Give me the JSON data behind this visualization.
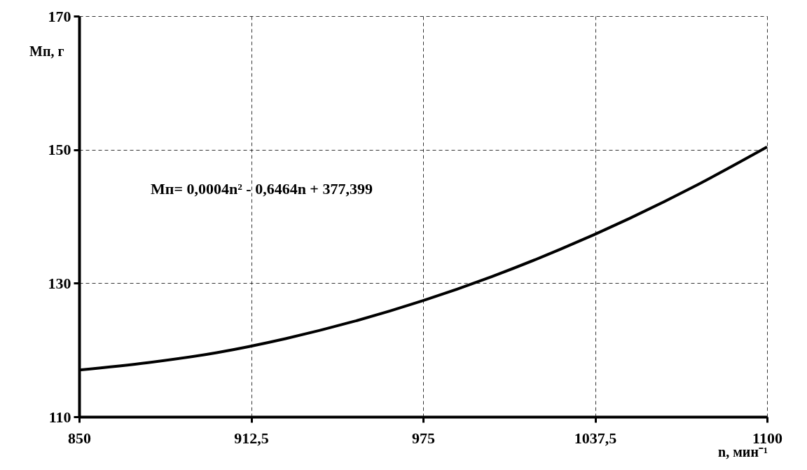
{
  "chart_data": {
    "type": "line",
    "xlabel": "n, мин⁻¹",
    "ylabel": "Мп, г",
    "annotations": [
      "Мп= 0,0004n² - 0,6464n + 377,399"
    ],
    "x": [
      850,
      875,
      900,
      925,
      950,
      975,
      1000,
      1025,
      1050,
      1075,
      1100
    ],
    "series": [
      {
        "color": "#000000",
        "values": [
          117.0,
          118.1,
          119.6,
          121.7,
          124.3,
          127.4,
          131.0,
          135.1,
          139.7,
          144.8,
          150.4
        ]
      }
    ],
    "xlim": [
      850,
      1100
    ],
    "xticks": [
      850,
      {
        "value": 912.5,
        "label": "912,5"
      },
      975,
      {
        "value": 1037.5,
        "label": "1037,5"
      },
      1100
    ],
    "ylim": [
      110,
      170
    ],
    "yticks": [
      110,
      130,
      150,
      170
    ],
    "grid": true,
    "marker": "none",
    "line_style": "solid"
  }
}
